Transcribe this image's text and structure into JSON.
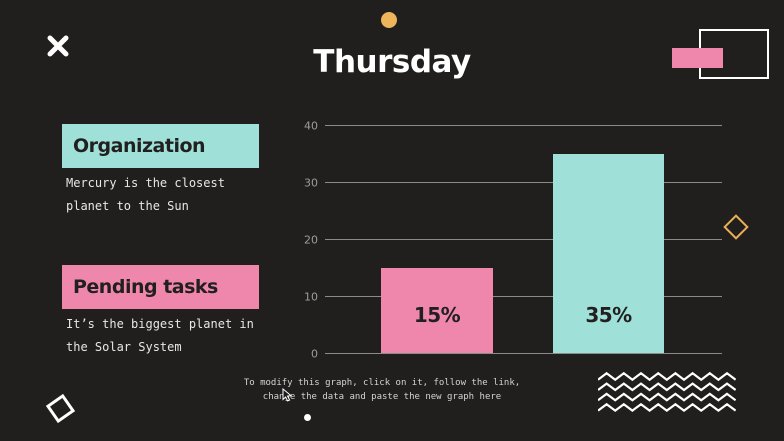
{
  "slide": {
    "title": "Thursday",
    "background": "#211e1e"
  },
  "left_panel": {
    "sections": [
      {
        "heading": "Organization",
        "body": "Mercury is the closest planet to the Sun",
        "accent": "#9fe0d9"
      },
      {
        "heading": "Pending tasks",
        "body": "It’s the biggest planet in the Solar System",
        "accent": "#ef87ad"
      }
    ]
  },
  "chart_data": {
    "type": "bar",
    "values": [
      15,
      35
    ],
    "data_labels": [
      "15%",
      "35%"
    ],
    "bar_colors": [
      "#ef87ad",
      "#9fe0d9"
    ],
    "title": "",
    "xlabel": "",
    "ylabel": "",
    "ylim": [
      0,
      40
    ],
    "y_ticks": [
      0,
      10,
      20,
      30,
      40
    ],
    "grid": true,
    "legend": "none",
    "gridline_color": "#8b8b8b",
    "tick_label_color": "#9c9c9c"
  },
  "footer": {
    "note_lines": [
      "To modify this graph, click on it, follow the link,",
      "change the data and paste the new graph here"
    ]
  },
  "decorations": {
    "yellow": "#e8af55",
    "pink": "#ef87ad",
    "teal": "#9fe0d9",
    "white": "#ffffff"
  }
}
